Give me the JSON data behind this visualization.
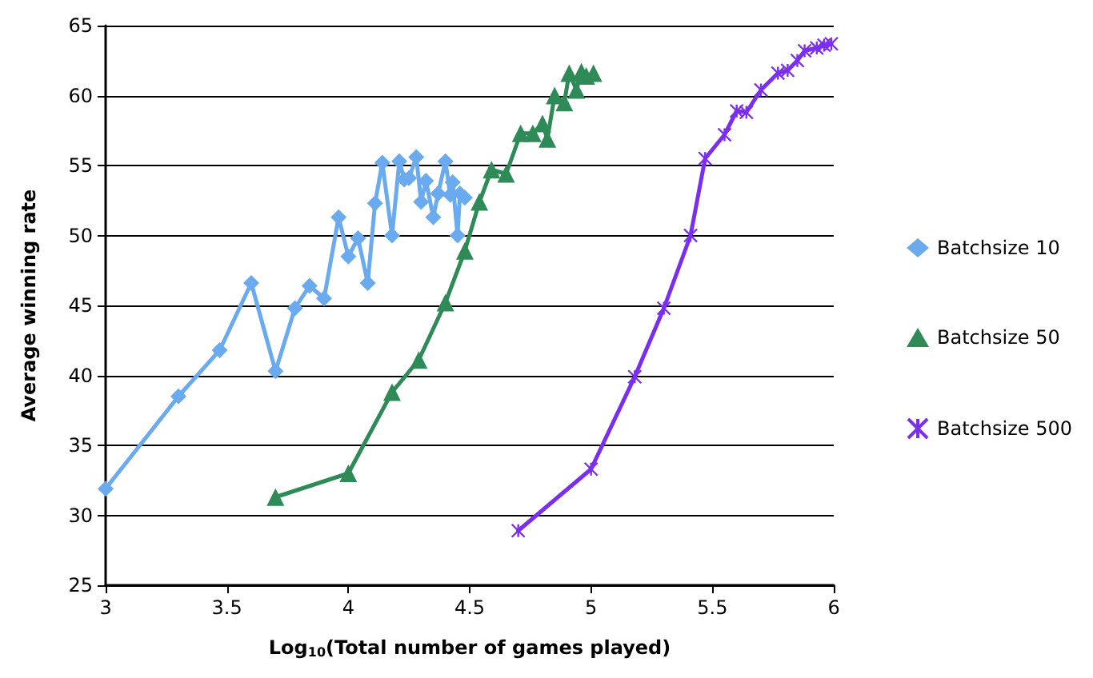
{
  "chart_data": {
    "type": "line",
    "xlabel": "Log$_{10}$(Total number of games played)",
    "ylabel": "Average winning rate",
    "xlim": [
      3,
      6
    ],
    "xticks": [
      3,
      3.5,
      4,
      4.5,
      5,
      5.5,
      6
    ],
    "ylim": [
      25,
      65
    ],
    "yticks": [
      25,
      30,
      35,
      40,
      45,
      50,
      55,
      60,
      65
    ],
    "grid": "y",
    "legend": "right",
    "series": [
      {
        "name": "Batchsize 10",
        "color": "#6aabf0",
        "marker": "diamond",
        "x": [
          3.0,
          3.3,
          3.47,
          3.6,
          3.7,
          3.78,
          3.84,
          3.9,
          3.96,
          4.0,
          4.04,
          4.08,
          4.11,
          4.14,
          4.18,
          4.21,
          4.23,
          4.25,
          4.28,
          4.3,
          4.32,
          4.35,
          4.37,
          4.4,
          4.42,
          4.43,
          4.45,
          4.46,
          4.48
        ],
        "values": [
          31.9,
          38.5,
          41.8,
          46.6,
          40.3,
          44.8,
          46.4,
          45.5,
          51.3,
          48.5,
          49.8,
          46.6,
          52.3,
          55.2,
          50,
          55.3,
          54,
          54.1,
          55.6,
          52.4,
          53.9,
          51.3,
          53,
          55.3,
          52.9,
          53.8,
          50,
          53,
          52.7
        ]
      },
      {
        "name": "Batchsize 50",
        "color": "#2e8b57",
        "marker": "triangle",
        "x": [
          3.7,
          4.0,
          4.18,
          4.29,
          4.4,
          4.48,
          4.54,
          4.59,
          4.65,
          4.71,
          4.76,
          4.8,
          4.82,
          4.85,
          4.89,
          4.91,
          4.94,
          4.96,
          4.98,
          5.01
        ],
        "values": [
          31.3,
          33,
          38.8,
          41.1,
          45.2,
          48.9,
          52.4,
          54.7,
          54.4,
          57.3,
          57.3,
          58,
          56.9,
          60,
          59.5,
          61.6,
          60.4,
          61.7,
          61.4,
          61.6
        ]
      },
      {
        "name": "Batchsize 500",
        "color": "#7a2ff0",
        "marker": "cross",
        "x": [
          4.7,
          5.0,
          5.18,
          5.3,
          5.41,
          5.47,
          5.55,
          5.6,
          5.64,
          5.7,
          5.77,
          5.81,
          5.85,
          5.88,
          5.93,
          5.96,
          5.99
        ],
        "values": [
          28.9,
          33.3,
          39.9,
          44.8,
          50,
          55.5,
          57.2,
          58.9,
          58.8,
          60.4,
          61.6,
          61.8,
          62.5,
          63.2,
          63.4,
          63.6,
          63.7
        ]
      }
    ]
  }
}
